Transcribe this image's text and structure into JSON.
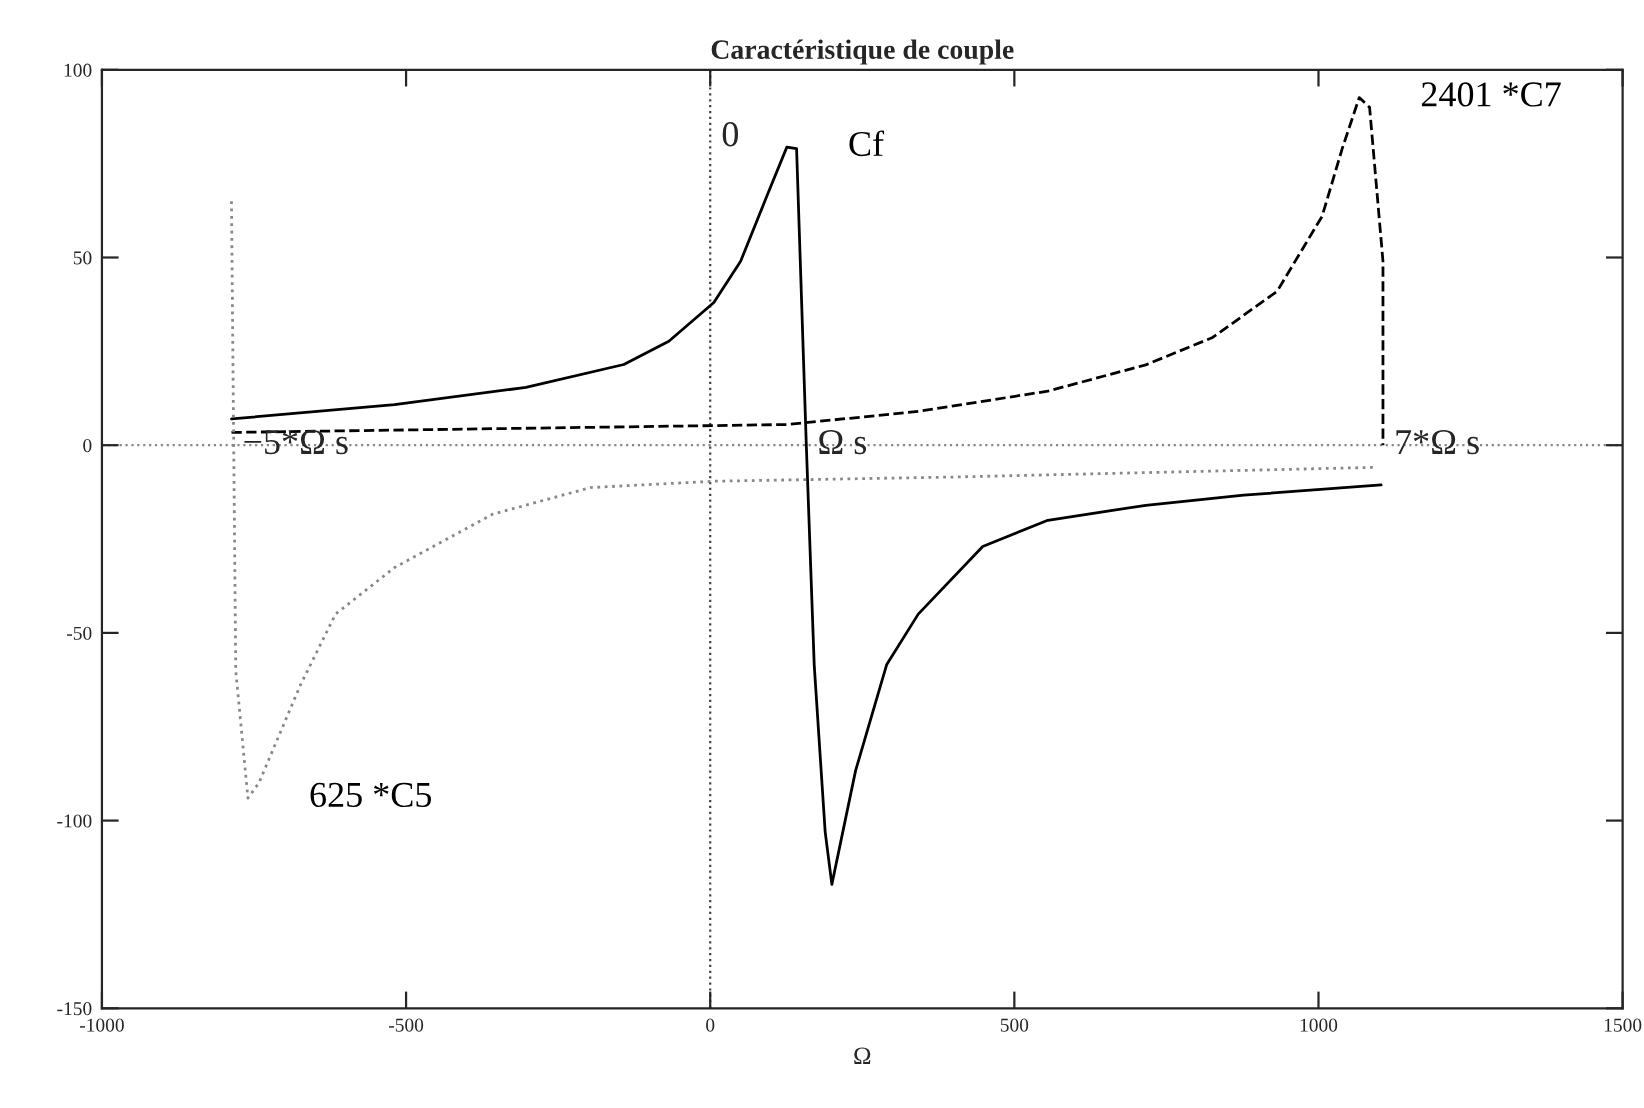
{
  "chart_data": {
    "type": "line",
    "title": "Caractéristique de couple",
    "xlabel": "Ω",
    "xlim": [
      -1000,
      1500
    ],
    "ylim": [
      -150,
      100
    ],
    "xticks": [
      -1000,
      -500,
      0,
      500,
      1000,
      1500
    ],
    "yticks": [
      -150,
      -100,
      -50,
      0,
      50,
      100
    ],
    "grid": false,
    "legend": false,
    "series": [
      {
        "name": "Cf",
        "color": "#000000",
        "line_style": "solid",
        "x": [
          -787,
          -519,
          -303,
          -142,
          -68,
          6,
          50,
          94,
          126,
          142,
          158,
          171,
          189,
          200,
          239,
          290,
          342,
          448,
          555,
          716,
          877,
          1103
        ],
        "values": [
          7,
          10.8,
          15.4,
          21.5,
          27.7,
          38,
          49,
          66.7,
          79.4,
          79,
          0,
          -58.6,
          -103,
          -117,
          -86.7,
          -58.5,
          -45,
          -27,
          -20,
          -16,
          -13.3,
          -10.6
        ]
      },
      {
        "name": "2401 *C7",
        "color": "#000000",
        "line_style": "dashed",
        "x": [
          -787,
          126,
          342,
          555,
          716,
          826,
          932,
          1006,
          1039,
          1067,
          1084,
          1106,
          1106
        ],
        "values": [
          3.4,
          5.5,
          9,
          14.4,
          21.4,
          28.7,
          41,
          61,
          79,
          92.6,
          90,
          49,
          0
        ]
      },
      {
        "name": "625 *C5",
        "color": "#888888",
        "line_style": "dotted",
        "x": [
          -787,
          -780,
          -760,
          -742,
          -674,
          -616,
          -519,
          -358,
          -197,
          6,
          394,
          1094
        ],
        "values": [
          65,
          -60,
          -94,
          -90,
          -64,
          -45,
          -32.6,
          -18.4,
          -11.3,
          -9.6,
          -8.5,
          -5.9
        ]
      }
    ],
    "ref_lines": [
      {
        "axis": "y",
        "value": 0,
        "color": "#888888",
        "line_style": "dotted"
      },
      {
        "axis": "x",
        "value": 0,
        "color": "#444444",
        "line_style": "dotted"
      }
    ],
    "annotations": [
      {
        "text": "−5*Ω s",
        "x": -787,
        "y": 0
      },
      {
        "text": "Ω s",
        "x": 158,
        "y": 0
      },
      {
        "text": "7*Ω s",
        "x": 1106,
        "y": 0
      },
      {
        "text": "0",
        "x": 0,
        "y": 82
      }
    ]
  }
}
